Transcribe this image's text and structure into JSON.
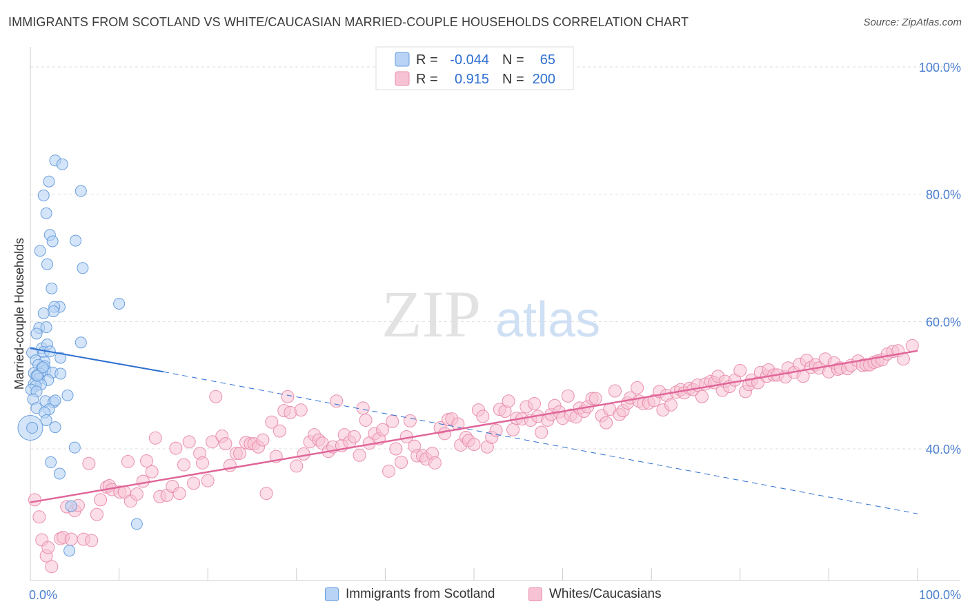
{
  "title": "IMMIGRANTS FROM SCOTLAND VS WHITE/CAUCASIAN MARRIED-COUPLE HOUSEHOLDS CORRELATION CHART",
  "source": "Source: ZipAtlas.com",
  "watermark": {
    "zip": "ZIP",
    "atlas": "atlas"
  },
  "colors": {
    "blue_fill": "#b8d3f5",
    "blue_stroke": "#6a9edc",
    "blue_line": "#2e6fd0",
    "pink_fill": "#f7c3d4",
    "pink_stroke": "#e98fae",
    "pink_line": "#e0669a",
    "axis_label": "#4a7fd0",
    "grid": "#dddddd"
  },
  "legend": {
    "rows": [
      {
        "r_label": "R =",
        "r_value": "-0.044",
        "n_label": "N =",
        "n_value": "65"
      },
      {
        "r_label": "R =",
        "r_value": "0.915",
        "n_label": "N =",
        "n_value": "200"
      }
    ]
  },
  "bottom_legend": {
    "series1": "Immigrants from Scotland",
    "series2": "Whites/Caucasians"
  },
  "chart_data": {
    "type": "scatter",
    "title": "IMMIGRANTS FROM SCOTLAND VS WHITE/CAUCASIAN MARRIED-COUPLE HOUSEHOLDS CORRELATION CHART",
    "xlabel": "",
    "ylabel": "Married-couple Households",
    "xlim": [
      0,
      100
    ],
    "ylim": [
      20,
      102
    ],
    "x_tick_labels": [
      "0.0%",
      "100.0%"
    ],
    "y_ticks": [
      40,
      60,
      80,
      100
    ],
    "y_tick_labels": [
      "40.0%",
      "60.0%",
      "80.0%",
      "100.0%"
    ],
    "grid": true,
    "legend_position": "top-center",
    "series": [
      {
        "name": "Immigrants from Scotland",
        "color": "blue",
        "r": -0.044,
        "n": 65,
        "trend": {
          "x0": 0,
          "y0": 55.8,
          "x1": 15,
          "y1": 52.1,
          "dashed_to_x": 100,
          "dashed_to_y": 29.8
        },
        "points": [
          [
            2.8,
            85.3
          ],
          [
            3.6,
            84.7
          ],
          [
            2.1,
            82.0
          ],
          [
            5.7,
            80.5
          ],
          [
            1.5,
            79.8
          ],
          [
            1.8,
            77.0
          ],
          [
            2.2,
            73.6
          ],
          [
            5.1,
            72.7
          ],
          [
            2.5,
            72.6
          ],
          [
            1.1,
            71.1
          ],
          [
            1.9,
            69.0
          ],
          [
            5.9,
            68.4
          ],
          [
            2.4,
            65.2
          ],
          [
            10.0,
            62.8
          ],
          [
            3.3,
            62.3
          ],
          [
            2.7,
            62.3
          ],
          [
            2.6,
            61.6
          ],
          [
            1.5,
            61.3
          ],
          [
            1.0,
            59.0
          ],
          [
            1.8,
            59.1
          ],
          [
            0.7,
            58.1
          ],
          [
            5.7,
            56.7
          ],
          [
            1.3,
            55.8
          ],
          [
            1.9,
            56.4
          ],
          [
            1.5,
            55.2
          ],
          [
            0.2,
            55.1
          ],
          [
            2.2,
            55.3
          ],
          [
            3.4,
            54.3
          ],
          [
            0.6,
            53.9
          ],
          [
            1.6,
            53.7
          ],
          [
            0.9,
            53.2
          ],
          [
            1.3,
            52.7
          ],
          [
            1.6,
            53.0
          ],
          [
            1.7,
            52.3
          ],
          [
            2.5,
            52.0
          ],
          [
            0.4,
            51.9
          ],
          [
            3.4,
            51.8
          ],
          [
            1.1,
            51.8
          ],
          [
            0.7,
            51.5
          ],
          [
            1.0,
            51.0
          ],
          [
            2.0,
            50.8
          ],
          [
            0.4,
            50.2
          ],
          [
            1.2,
            50.1
          ],
          [
            0.6,
            49.9
          ],
          [
            0.1,
            49.3
          ],
          [
            0.7,
            49.0
          ],
          [
            4.2,
            48.4
          ],
          [
            0.3,
            47.8
          ],
          [
            1.7,
            47.5
          ],
          [
            2.6,
            47.3
          ],
          [
            2.8,
            47.6
          ],
          [
            0.7,
            46.4
          ],
          [
            2.1,
            46.2
          ],
          [
            1.6,
            45.7
          ],
          [
            1.8,
            44.5
          ],
          [
            2.8,
            43.4
          ],
          [
            0.2,
            43.3
          ],
          [
            5.0,
            40.2
          ],
          [
            2.3,
            37.9
          ],
          [
            3.3,
            36.1
          ],
          [
            4.6,
            31.0
          ],
          [
            12.0,
            28.2
          ],
          [
            4.4,
            24.0
          ],
          [
            0.8,
            51.5
          ],
          [
            1.4,
            52.8
          ]
        ]
      },
      {
        "name": "Whites/Caucasians",
        "color": "pink",
        "r": 0.915,
        "n": 200,
        "trend": {
          "x0": 0,
          "y0": 31.6,
          "x1": 100,
          "y1": 55.4
        },
        "points": [
          [
            0.5,
            32.0
          ],
          [
            1.0,
            29.3
          ],
          [
            1.3,
            25.7
          ],
          [
            1.8,
            23.2
          ],
          [
            2.0,
            24.5
          ],
          [
            2.4,
            21.5
          ],
          [
            3.4,
            25.9
          ],
          [
            3.7,
            26.1
          ],
          [
            4.1,
            30.9
          ],
          [
            4.6,
            25.8
          ],
          [
            5.0,
            30.3
          ],
          [
            5.4,
            31.1
          ],
          [
            6.0,
            25.8
          ],
          [
            6.6,
            37.7
          ],
          [
            6.9,
            25.6
          ],
          [
            7.5,
            29.7
          ],
          [
            7.9,
            32.0
          ],
          [
            8.6,
            34.0
          ],
          [
            8.9,
            34.2
          ],
          [
            9.2,
            33.6
          ],
          [
            10.1,
            33.2
          ],
          [
            10.6,
            33.2
          ],
          [
            11.0,
            38.0
          ],
          [
            11.3,
            31.8
          ],
          [
            12.0,
            32.9
          ],
          [
            12.7,
            34.9
          ],
          [
            13.1,
            38.1
          ],
          [
            13.7,
            36.4
          ],
          [
            14.1,
            41.7
          ],
          [
            14.6,
            32.5
          ],
          [
            15.4,
            32.7
          ],
          [
            16.0,
            34.1
          ],
          [
            16.4,
            40.1
          ],
          [
            16.8,
            33.0
          ],
          [
            17.3,
            37.5
          ],
          [
            17.9,
            41.1
          ],
          [
            18.4,
            34.6
          ],
          [
            19.1,
            39.3
          ],
          [
            19.4,
            37.8
          ],
          [
            20.0,
            35.0
          ],
          [
            20.5,
            41.1
          ],
          [
            20.9,
            48.2
          ],
          [
            21.6,
            42.0
          ],
          [
            22.0,
            40.8
          ],
          [
            22.5,
            37.4
          ],
          [
            23.2,
            39.3
          ],
          [
            23.6,
            39.3
          ],
          [
            24.3,
            41.0
          ],
          [
            24.8,
            40.8
          ],
          [
            25.2,
            40.8
          ],
          [
            25.7,
            40.3
          ],
          [
            26.2,
            41.4
          ],
          [
            26.6,
            33.0
          ],
          [
            27.2,
            44.2
          ],
          [
            27.7,
            38.8
          ],
          [
            28.1,
            42.8
          ],
          [
            28.6,
            46.0
          ],
          [
            29.0,
            48.2
          ],
          [
            29.3,
            45.7
          ],
          [
            30.0,
            37.3
          ],
          [
            30.5,
            46.1
          ],
          [
            30.8,
            39.2
          ],
          [
            31.5,
            41.1
          ],
          [
            32.0,
            42.2
          ],
          [
            32.5,
            41.4
          ],
          [
            32.9,
            40.9
          ],
          [
            33.6,
            39.6
          ],
          [
            34.1,
            40.3
          ],
          [
            34.5,
            47.5
          ],
          [
            35.1,
            40.5
          ],
          [
            35.4,
            42.2
          ],
          [
            36.0,
            41.1
          ],
          [
            36.5,
            41.9
          ],
          [
            37.1,
            39.0
          ],
          [
            37.5,
            46.4
          ],
          [
            37.8,
            44.5
          ],
          [
            38.2,
            40.9
          ],
          [
            38.8,
            42.4
          ],
          [
            39.3,
            41.6
          ],
          [
            39.7,
            43.0
          ],
          [
            40.4,
            36.5
          ],
          [
            40.8,
            44.3
          ],
          [
            41.2,
            40.0
          ],
          [
            41.8,
            37.9
          ],
          [
            42.4,
            41.9
          ],
          [
            42.8,
            44.4
          ],
          [
            43.3,
            40.4
          ],
          [
            43.6,
            38.9
          ],
          [
            44.2,
            38.9
          ],
          [
            44.6,
            38.4
          ],
          [
            45.3,
            39.3
          ],
          [
            45.6,
            37.8
          ],
          [
            46.2,
            43.3
          ],
          [
            46.7,
            42.4
          ],
          [
            47.1,
            44.6
          ],
          [
            47.5,
            44.7
          ],
          [
            48.2,
            43.9
          ],
          [
            48.5,
            40.6
          ],
          [
            49.1,
            41.8
          ],
          [
            49.4,
            41.3
          ],
          [
            50.0,
            40.7
          ],
          [
            50.5,
            46.1
          ],
          [
            51.0,
            45.1
          ],
          [
            51.5,
            40.3
          ],
          [
            52.0,
            41.8
          ],
          [
            52.5,
            42.9
          ],
          [
            52.9,
            46.2
          ],
          [
            53.5,
            45.9
          ],
          [
            53.9,
            47.5
          ],
          [
            54.4,
            43.0
          ],
          [
            54.8,
            44.8
          ],
          [
            55.4,
            44.7
          ],
          [
            55.9,
            46.6
          ],
          [
            56.4,
            44.5
          ],
          [
            56.8,
            47.1
          ],
          [
            57.2,
            45.1
          ],
          [
            57.6,
            42.6
          ],
          [
            58.3,
            44.5
          ],
          [
            58.7,
            45.4
          ],
          [
            59.1,
            46.8
          ],
          [
            59.6,
            45.8
          ],
          [
            60.0,
            44.8
          ],
          [
            60.6,
            48.3
          ],
          [
            60.9,
            45.3
          ],
          [
            61.5,
            45.0
          ],
          [
            61.9,
            46.4
          ],
          [
            62.4,
            45.9
          ],
          [
            62.8,
            46.6
          ],
          [
            63.3,
            47.9
          ],
          [
            63.7,
            47.9
          ],
          [
            64.4,
            45.2
          ],
          [
            64.9,
            44.1
          ],
          [
            65.3,
            46.2
          ],
          [
            65.9,
            49.1
          ],
          [
            66.4,
            45.4
          ],
          [
            66.8,
            46.0
          ],
          [
            67.3,
            47.2
          ],
          [
            67.6,
            48.0
          ],
          [
            68.4,
            49.6
          ],
          [
            68.6,
            47.5
          ],
          [
            69.1,
            47.1
          ],
          [
            69.7,
            47.2
          ],
          [
            70.3,
            47.6
          ],
          [
            70.9,
            49.0
          ],
          [
            71.3,
            46.1
          ],
          [
            71.7,
            48.4
          ],
          [
            72.2,
            46.9
          ],
          [
            72.8,
            48.9
          ],
          [
            73.3,
            49.3
          ],
          [
            73.7,
            48.8
          ],
          [
            74.3,
            49.5
          ],
          [
            74.7,
            49.3
          ],
          [
            75.2,
            50.0
          ],
          [
            75.7,
            48.2
          ],
          [
            76.1,
            50.2
          ],
          [
            76.7,
            50.6
          ],
          [
            77.1,
            50.4
          ],
          [
            77.5,
            51.4
          ],
          [
            78.0,
            49.2
          ],
          [
            78.3,
            50.6
          ],
          [
            78.8,
            49.8
          ],
          [
            79.4,
            50.8
          ],
          [
            80.0,
            52.3
          ],
          [
            80.6,
            49.0
          ],
          [
            81.0,
            50.1
          ],
          [
            81.3,
            50.8
          ],
          [
            82.0,
            50.4
          ],
          [
            82.3,
            52.0
          ],
          [
            83.0,
            51.4
          ],
          [
            83.2,
            52.4
          ],
          [
            83.8,
            51.6
          ],
          [
            84.2,
            51.6
          ],
          [
            85.1,
            51.3
          ],
          [
            85.4,
            52.7
          ],
          [
            86.1,
            52.0
          ],
          [
            86.7,
            53.3
          ],
          [
            87.1,
            51.4
          ],
          [
            87.5,
            53.9
          ],
          [
            88.0,
            52.8
          ],
          [
            88.5,
            53.2
          ],
          [
            88.9,
            52.7
          ],
          [
            89.6,
            54.1
          ],
          [
            90.0,
            52.1
          ],
          [
            90.6,
            53.5
          ],
          [
            91.0,
            52.5
          ],
          [
            91.3,
            52.7
          ],
          [
            92.1,
            52.6
          ],
          [
            92.5,
            53.1
          ],
          [
            93.3,
            53.8
          ],
          [
            93.8,
            53.1
          ],
          [
            94.2,
            53.2
          ],
          [
            94.6,
            53.2
          ],
          [
            95.1,
            53.6
          ],
          [
            95.5,
            53.8
          ],
          [
            96.0,
            54.0
          ],
          [
            96.6,
            54.9
          ],
          [
            97.2,
            55.3
          ],
          [
            97.8,
            55.4
          ],
          [
            98.4,
            54.1
          ],
          [
            99.4,
            56.2
          ]
        ]
      }
    ]
  }
}
